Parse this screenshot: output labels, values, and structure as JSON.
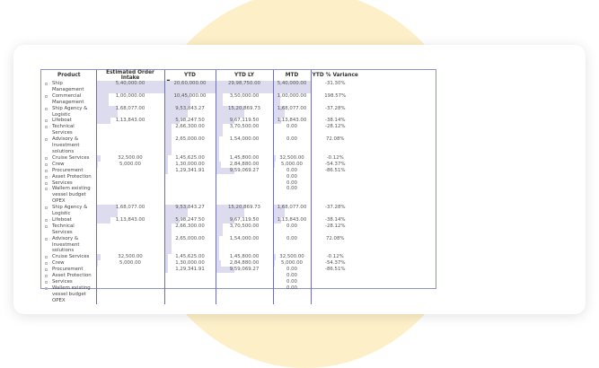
{
  "headers": [
    "Product",
    "Estimated Order Intake",
    "YTD",
    "YTD LY",
    "MTD",
    "YTD % Variance"
  ],
  "rows": [
    [
      "Ship Management",
      "5,40,000.00",
      "20,60,000.00",
      "29,98,750.00",
      "5,40,000.00",
      "-31.30%"
    ],
    [
      "Commercial Management",
      "1,00,000.00",
      "10,45,000.00",
      "3,50,000.00",
      "1,00,000.00",
      "198.57%"
    ],
    [
      "Ship Agency & Logistic",
      "1,68,077.00",
      "9,53,843.27",
      "15,20,869.73",
      "1,68,077.00",
      "-37.28%"
    ],
    [
      "Lifeboat",
      "1,13,843.00",
      "5,98,247.50",
      "9,67,119.50",
      "1,13,843.00",
      "-38.14%"
    ],
    [
      "Technical Services",
      "",
      "2,66,300.00",
      "3,70,500.00",
      "0.00",
      "-28.12%"
    ],
    [
      "Advisory & Investment solutions",
      "",
      "2,65,000.00",
      "1,54,000.00",
      "0.00",
      "72.08%"
    ],
    [
      "Cruise Services",
      "32,500.00",
      "1,45,625.00",
      "1,45,800.00",
      "32,500.00",
      "-0.12%"
    ],
    [
      "Crew",
      "5,000.00",
      "1,30,000.00",
      "2,84,880.00",
      "5,000.00",
      "-54.37%"
    ],
    [
      "Procurement",
      "",
      "1,29,341.91",
      "9,59,069.27",
      "0.00",
      "-86.51%"
    ],
    [
      "Asset Protection",
      "",
      "",
      "",
      "0.00",
      ""
    ],
    [
      "Services",
      "",
      "",
      "",
      "0.00",
      ""
    ],
    [
      "Wallem existing vessel budget OPEX",
      "",
      "",
      "",
      "0.00",
      ""
    ],
    [
      "Ship Agency & Logistic",
      "1,68,077.00",
      "9,53,843.27",
      "15,20,869.73",
      "1,68,077.00",
      "-37.28%"
    ],
    [
      "Lifeboat",
      "1,13,843.00",
      "5,98,247.50",
      "9,67,119.50",
      "1,13,843.00",
      "-38.14%"
    ],
    [
      "Technical Services",
      "",
      "2,66,300.00",
      "3,70,500.00",
      "0.00",
      "-28.12%"
    ],
    [
      "Advisory & Investment solutions",
      "",
      "2,65,000.00",
      "1,54,000.00",
      "0.00",
      "72.08%"
    ],
    [
      "Cruise Services",
      "32,500.00",
      "1,45,625.00",
      "1,45,800.00",
      "32,500.00",
      "-0.12%"
    ],
    [
      "Crew",
      "5,000.00",
      "1,30,000.00",
      "2,84,880.00",
      "5,000.00",
      "-54.37%"
    ],
    [
      "Procurement",
      "",
      "1,29,341.91",
      "9,59,069.27",
      "0.00",
      "-86.51%"
    ],
    [
      "Asset Protection",
      "",
      "",
      "",
      "0.00",
      ""
    ],
    [
      "Services",
      "",
      "",
      "",
      "0.00",
      ""
    ],
    [
      "Wallem existing vessel budget OPEX",
      "",
      "",
      "",
      "0.00",
      ""
    ]
  ],
  "sort_column": "YTD",
  "sort_direction": "descending",
  "colors": {
    "bar": "#dcdcee",
    "border": "#6a6fc0",
    "backdrop": "#fdf0c8"
  }
}
